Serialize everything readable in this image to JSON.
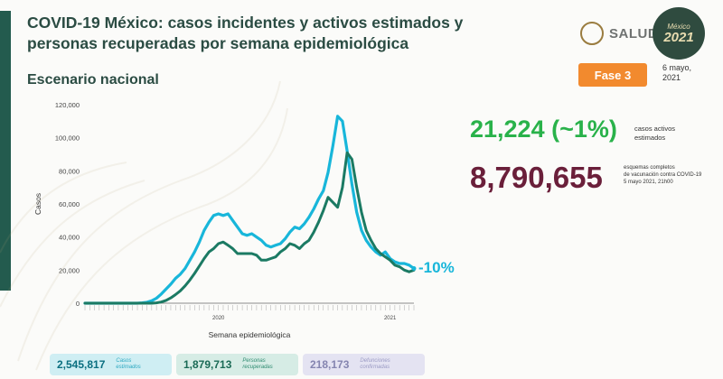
{
  "header": {
    "title": "COVID-19 México: casos incidentes y activos estimados y personas recuperadas por semana epidemiológica",
    "subtitle": "Escenario nacional",
    "logo_text": "SALUD",
    "logo_2021_small": "México",
    "logo_2021_year": "2021",
    "phase": "Fase 3",
    "date_line1": "6 mayo,",
    "date_line2": "2021"
  },
  "stats": {
    "active_cases_value": "21,224 (~1%)",
    "active_cases_label_line1": "casos activos",
    "active_cases_label_line2": "estimados",
    "vaccination_value": "8,790,655",
    "vaccination_label_line1": "esquemas completos",
    "vaccination_label_line2": "de vacunación contra COVID-19",
    "vaccination_label_line3": "5 mayo 2021, 21h00",
    "change_percent": "-10%"
  },
  "summary_boxes": [
    {
      "value": "2,545,817",
      "label_line1": "Casos",
      "label_line2": "estimados",
      "color": "#0b6f80"
    },
    {
      "value": "1,879,713",
      "label_line1": "Personas",
      "label_line2": "recuperadas",
      "color": "#1a6a55"
    },
    {
      "value": "218,173",
      "label_line1": "Defunciones",
      "label_line2": "confirmadas",
      "color": "#8585b0"
    }
  ],
  "colors": {
    "brand": "#235b4e",
    "series_estimated": "#18b6da",
    "series_recovered": "#1b7a63",
    "phase": "#f28a2e",
    "active": "#29b24a",
    "vaccination": "#6a1f3a"
  },
  "chart_data": {
    "type": "line",
    "ylabel": "Casos",
    "xlabel": "Semana epidemiológica",
    "ylim": [
      0,
      120000
    ],
    "yticks": [
      "0",
      "20,000",
      "40,000",
      "60,000",
      "80,000",
      "100,000",
      "120,000"
    ],
    "year_labels": [
      {
        "label": "2020",
        "week_index": 28
      },
      {
        "label": "2021",
        "week_index": 64
      }
    ],
    "grid": false,
    "series": [
      {
        "values": [
          0,
          0,
          0,
          0,
          0,
          0,
          0,
          0,
          0,
          0,
          0,
          0,
          200,
          600,
          1500,
          3000,
          5500,
          8500,
          11500,
          15000,
          17500,
          21000,
          26000,
          31000,
          37000,
          44000,
          49000,
          53000,
          54000,
          53000,
          54000,
          50000,
          46000,
          42000,
          41000,
          42000,
          40000,
          38000,
          35000,
          34000,
          35000,
          36000,
          39000,
          43000,
          46000,
          45000,
          48000,
          52000,
          57000,
          63000,
          68000,
          79000,
          95000,
          113000,
          110000,
          92000,
          72000,
          55000,
          44000,
          38000,
          34000,
          31000,
          29000,
          31000,
          27000,
          25000,
          24000,
          24000,
          23000,
          21000
        ]
      },
      {
        "values": [
          0,
          0,
          0,
          0,
          0,
          0,
          0,
          0,
          0,
          0,
          0,
          0,
          0,
          0,
          0,
          200,
          700,
          1700,
          3200,
          5200,
          7500,
          10500,
          14000,
          18000,
          22500,
          27000,
          31000,
          33000,
          36000,
          37000,
          35000,
          33000,
          30000,
          30000,
          30000,
          30000,
          29000,
          26000,
          26000,
          27000,
          28000,
          31000,
          33000,
          36000,
          35000,
          33000,
          36000,
          38000,
          43000,
          49000,
          56000,
          64000,
          61000,
          58000,
          70000,
          91000,
          87000,
          70000,
          55000,
          44000,
          38000,
          33000,
          30000,
          28000,
          26000,
          23000,
          22000,
          20000,
          19000,
          20000
        ]
      }
    ]
  }
}
